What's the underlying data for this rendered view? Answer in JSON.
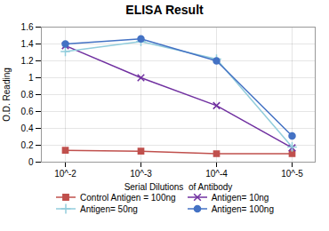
{
  "chart_data": {
    "type": "line",
    "title": "ELISA Result",
    "xlabel": "Serial Dilutions  of Antibody",
    "ylabel": "O.D. Reading",
    "categories": [
      "10^-2",
      "10^-3",
      "10^-4",
      "10^-5"
    ],
    "series": [
      {
        "name": "Control Antigen = 100ng",
        "color": "#c0504d",
        "marker": "square",
        "values": [
          0.14,
          0.13,
          0.1,
          0.1
        ]
      },
      {
        "name": "Antigen= 10ng",
        "color": "#7030a0",
        "marker": "times",
        "values": [
          1.38,
          1.0,
          0.67,
          0.17
        ]
      },
      {
        "name": "Antigen= 50ng",
        "color": "#92cddc",
        "marker": "plus",
        "values": [
          1.31,
          1.43,
          1.22,
          0.18
        ]
      },
      {
        "name": "Antigen= 100ng",
        "color": "#4472c4",
        "marker": "circle",
        "values": [
          1.4,
          1.46,
          1.2,
          0.31
        ]
      }
    ],
    "ylim": [
      0,
      1.6
    ],
    "yticks": [
      0,
      0.2,
      0.4,
      0.6,
      0.8,
      1,
      1.2,
      1.4,
      1.6
    ],
    "grid": true,
    "legend": "bottom"
  }
}
